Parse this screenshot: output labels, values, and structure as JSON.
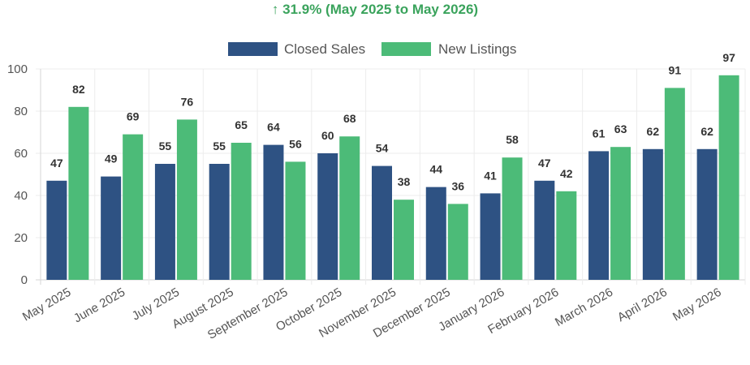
{
  "headline": "↑ 31.9% (May 2025 to May 2026)",
  "chart_data": {
    "type": "bar",
    "categories": [
      "May 2025",
      "June 2025",
      "July 2025",
      "August 2025",
      "September 2025",
      "October 2025",
      "November 2025",
      "December 2025",
      "January 2026",
      "February 2026",
      "March 2026",
      "April 2026",
      "May 2026"
    ],
    "series": [
      {
        "name": "Closed Sales",
        "color": "#2e5283",
        "values": [
          47,
          49,
          55,
          55,
          64,
          60,
          54,
          44,
          41,
          47,
          61,
          62,
          62
        ]
      },
      {
        "name": "New Listings",
        "color": "#4cbb78",
        "values": [
          82,
          69,
          76,
          65,
          56,
          68,
          38,
          36,
          58,
          42,
          63,
          91,
          97
        ]
      }
    ],
    "ylim": [
      0,
      100
    ],
    "yticks": [
      0,
      20,
      40,
      60,
      80,
      100
    ],
    "grid": true,
    "legend": "top-center",
    "data_labels": true
  }
}
